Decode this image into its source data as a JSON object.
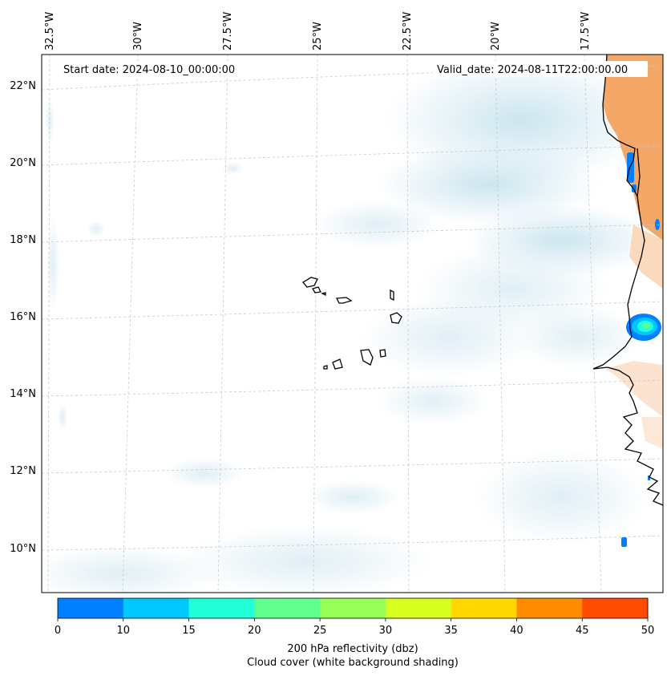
{
  "map": {
    "start_date_label": "Start date: 2024-08-10_00:00:00",
    "valid_date_label": "Valid_date: 2024-08-11T22:00:00.00",
    "lat_labels": [
      "22°N",
      "20°N",
      "18°N",
      "16°N",
      "14°N",
      "12°N",
      "10°N"
    ],
    "lon_labels": [
      "32.5°W",
      "30°W",
      "27.5°W",
      "25°W",
      "22.5°W",
      "20°W",
      "17.5°W"
    ],
    "colors": {
      "land_orange": "#f4a766",
      "cloud_blue": "#d6ebf2",
      "coast": "#000000",
      "grid": "#c8c8c8"
    }
  },
  "colorbar": {
    "ticks": [
      "0",
      "10",
      "15",
      "20",
      "25",
      "30",
      "35",
      "40",
      "45",
      "50"
    ],
    "colors": [
      "#0080ff",
      "#00c8ff",
      "#20ffd8",
      "#60ff90",
      "#98ff58",
      "#d8ff20",
      "#ffd800",
      "#ff8c00",
      "#ff4c00"
    ],
    "title_line1": "200 hPa reflectivity (dbz)",
    "title_line2": "Cloud cover (white background shading)"
  }
}
